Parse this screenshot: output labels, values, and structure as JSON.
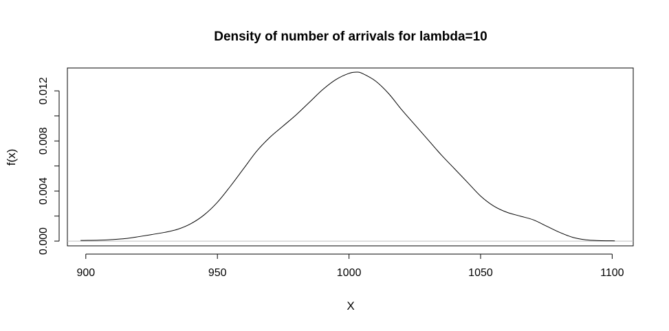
{
  "chart_data": {
    "type": "line",
    "title": "Density of number of arrivals for lambda=10",
    "xlabel": "X",
    "ylabel": "f(x)",
    "xlim": [
      893,
      1108
    ],
    "ylim": [
      -0.00038,
      0.01383
    ],
    "xticks": [
      900,
      950,
      1000,
      1050,
      1100
    ],
    "xtick_labels": [
      "900",
      "950",
      "1000",
      "1050",
      "1100"
    ],
    "yticks": [
      0.0,
      0.002,
      0.004,
      0.006,
      0.008,
      0.01,
      0.012
    ],
    "ytick_labels": [
      "0.000",
      "",
      "0.004",
      "",
      "0.008",
      "",
      "0.012"
    ],
    "baseline": 0,
    "grid": false,
    "legend": "none",
    "colors": {
      "line": "#000000",
      "baseline": "#bebebe",
      "frame": "#000000"
    },
    "series": [
      {
        "x": [
          898,
          905,
          910,
          915,
          920,
          925,
          930,
          935,
          940,
          945,
          950,
          955,
          960,
          965,
          970,
          975,
          980,
          985,
          990,
          995,
          1000,
          1003,
          1005,
          1010,
          1015,
          1020,
          1025,
          1030,
          1035,
          1040,
          1045,
          1050,
          1055,
          1060,
          1065,
          1070,
          1075,
          1080,
          1085,
          1090,
          1095,
          1101
        ],
        "y": [
          5e-05,
          7e-05,
          0.00012,
          0.0002,
          0.00035,
          0.00052,
          0.0007,
          0.00095,
          0.0014,
          0.0021,
          0.0031,
          0.0044,
          0.0058,
          0.0072,
          0.0083,
          0.0092,
          0.0101,
          0.0111,
          0.0121,
          0.0129,
          0.0134,
          0.0135,
          0.0134,
          0.0128,
          0.0118,
          0.0105,
          0.0093,
          0.0081,
          0.0069,
          0.0058,
          0.0047,
          0.0036,
          0.0028,
          0.0023,
          0.002,
          0.0017,
          0.0012,
          0.0007,
          0.0003,
          0.0001,
          4e-05,
          2e-05
        ]
      }
    ]
  }
}
